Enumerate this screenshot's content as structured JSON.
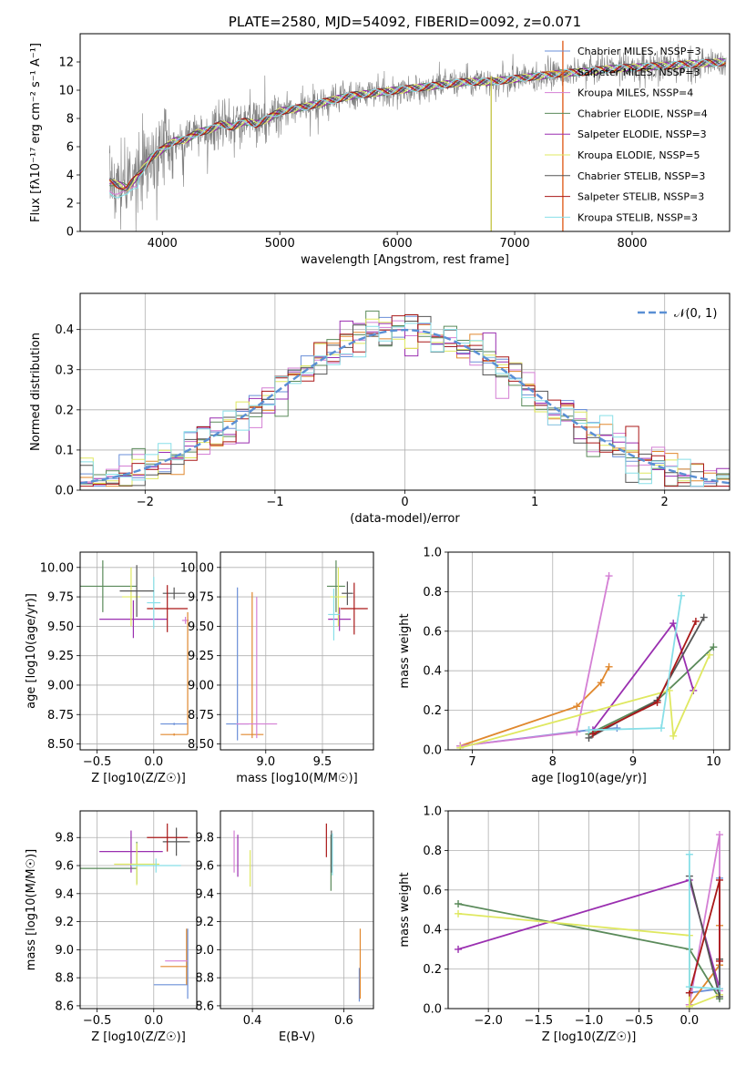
{
  "colors": {
    "palette": [
      "#6a8fd8",
      "#e0882e",
      "#d47fd4",
      "#5a8a5a",
      "#9a2fb0",
      "#dfe860",
      "#555555",
      "#aa1818",
      "#88dfe8"
    ],
    "gauss": "#5a8fd4",
    "flux_data": "#808080",
    "grid": "#b0b0b0"
  },
  "chart_data": [
    {
      "id": "spectrum",
      "type": "line",
      "title": "PLATE=2580, MJD=54092, FIBERID=0092, z=0.071",
      "xlabel": "wavelength [Angstrom, rest frame]",
      "ylabel": "Flux [fλ10⁻¹⁷ erg cm⁻² s⁻¹ A⁻¹]",
      "xlim": [
        3300,
        8830
      ],
      "ylim": [
        0,
        14
      ],
      "xticks": [
        4000,
        5000,
        6000,
        7000,
        8000
      ],
      "yticks": [
        0,
        2,
        4,
        6,
        8,
        10,
        12
      ],
      "grid": false,
      "legend_position": "upper-right",
      "continuum": {
        "x": [
          3550,
          3700,
          3800,
          3900,
          4000,
          4100,
          4200,
          4300,
          4400,
          4500,
          4600,
          4700,
          4800,
          4900,
          5000,
          5200,
          5400,
          5600,
          5800,
          6000,
          6200,
          6400,
          6600,
          6800,
          7000,
          7200,
          7400,
          7600,
          7800,
          8000,
          8200,
          8400,
          8600,
          8800
        ],
        "y": [
          3.5,
          3.1,
          4.0,
          5.2,
          5.8,
          6.4,
          6.5,
          7.0,
          7.2,
          7.6,
          7.4,
          7.8,
          7.6,
          8.0,
          8.5,
          8.8,
          9.2,
          9.6,
          9.8,
          10.0,
          10.2,
          10.4,
          10.6,
          10.6,
          10.8,
          11.0,
          11.2,
          11.3,
          11.5,
          11.6,
          11.7,
          11.8,
          11.9,
          12.0
        ]
      },
      "legend": [
        "Chabrier MILES, NSSP=3",
        "Salpeter MILES, NSSP=3",
        "Kroupa MILES, NSSP=4",
        "Chabrier ELODIE, NSSP=4",
        "Salpeter ELODIE, NSSP=3",
        "Kroupa ELODIE, NSSP=5",
        "Chabrier STELIB, NSSP=3",
        "Salpeter STELIB, NSSP=3",
        "Kroupa STELIB, NSSP=3"
      ]
    },
    {
      "id": "residuals",
      "type": "line",
      "xlabel": "(data-model)/error",
      "ylabel": "Normed distribution",
      "xlim": [
        -2.5,
        2.5
      ],
      "ylim": [
        0,
        0.49
      ],
      "xticks": [
        -2,
        -1,
        0,
        1,
        2
      ],
      "yticks": [
        0.0,
        0.1,
        0.2,
        0.3,
        0.4
      ],
      "grid": true,
      "legend": [
        "𝒩(0, 1)"
      ],
      "legend_position": "upper-right",
      "gaussian": {
        "mean": 0,
        "sigma": 1
      }
    },
    {
      "id": "age_vs_Z",
      "type": "scatter",
      "xlabel": "Z [log10(Z/Z☉)]",
      "ylabel": "age  [log10(age/yr)]",
      "xlim": [
        -0.65,
        0.38
      ],
      "ylim": [
        8.45,
        10.13
      ],
      "xticks": [
        -0.5,
        0.0
      ],
      "yticks": [
        8.5,
        8.75,
        9.0,
        9.25,
        9.5,
        9.75,
        10.0
      ],
      "grid": true,
      "errorbars": [
        {
          "c": 0,
          "x": 0.18,
          "y": 8.67,
          "xerr": 0.12,
          "yerr": 0.01
        },
        {
          "c": 1,
          "x": 0.18,
          "y": 8.58,
          "xerr": 0.12,
          "yerr": 0.01
        },
        {
          "c": 2,
          "x": 0.28,
          "y": 9.55,
          "xerr": 0.03,
          "yerr": 0.03
        },
        {
          "c": 3,
          "x": -0.45,
          "y": 9.84,
          "xerr": 0.3,
          "yerr": 0.22
        },
        {
          "c": 4,
          "x": -0.18,
          "y": 9.56,
          "xerr": 0.3,
          "yerr": 0.16
        },
        {
          "c": 5,
          "x": -0.2,
          "y": 9.75,
          "xerr": 0.08,
          "yerr": 0.25
        },
        {
          "c": 6,
          "x": 0.18,
          "y": 9.78,
          "xerr": 0.1,
          "yerr": 0.05
        },
        {
          "c": 7,
          "x": 0.12,
          "y": 9.65,
          "xerr": 0.18,
          "yerr": 0.2
        },
        {
          "c": 8,
          "x": 0.0,
          "y": 9.7,
          "xerr": 0.06,
          "yerr": 0.22
        },
        {
          "c": 1,
          "x": 0.3,
          "y": 9.1,
          "xerr": 0.0,
          "yerr": 0.52
        },
        {
          "c": 6,
          "x": -0.15,
          "y": 9.8,
          "xerr": 0.15,
          "yerr": 0.22
        }
      ]
    },
    {
      "id": "age_vs_mass",
      "type": "scatter",
      "xlabel": "mass [log10(M/M☉)]",
      "ylabel": "",
      "xlim": [
        8.6,
        9.95
      ],
      "ylim": [
        8.45,
        10.13
      ],
      "xticks": [
        9.0,
        9.5
      ],
      "yticks": [
        8.5,
        8.75,
        9.0,
        9.25,
        9.5,
        9.75,
        10.0
      ],
      "grid": true,
      "errorbars": [
        {
          "c": 0,
          "x": 8.75,
          "y": 8.67,
          "xerr": 0.1,
          "yerr": 0.0
        },
        {
          "c": 0,
          "x": 8.75,
          "y": 9.18,
          "xerr": 0.0,
          "yerr": 0.65
        },
        {
          "c": 1,
          "x": 8.88,
          "y": 8.58,
          "xerr": 0.1,
          "yerr": 0.0
        },
        {
          "c": 1,
          "x": 8.88,
          "y": 9.17,
          "xerr": 0.0,
          "yerr": 0.62
        },
        {
          "c": 2,
          "x": 8.92,
          "y": 8.67,
          "xerr": 0.18,
          "yerr": 0.0
        },
        {
          "c": 2,
          "x": 8.92,
          "y": 9.15,
          "xerr": 0.0,
          "yerr": 0.6
        },
        {
          "c": 3,
          "x": 9.62,
          "y": 9.84,
          "xerr": 0.08,
          "yerr": 0.22
        },
        {
          "c": 4,
          "x": 9.65,
          "y": 9.56,
          "xerr": 0.1,
          "yerr": 0.1
        },
        {
          "c": 5,
          "x": 9.64,
          "y": 9.75,
          "xerr": 0.07,
          "yerr": 0.25
        },
        {
          "c": 6,
          "x": 9.72,
          "y": 9.78,
          "xerr": 0.05,
          "yerr": 0.1
        },
        {
          "c": 7,
          "x": 9.78,
          "y": 9.65,
          "xerr": 0.12,
          "yerr": 0.22
        },
        {
          "c": 8,
          "x": 9.6,
          "y": 9.6,
          "xerr": 0.05,
          "yerr": 0.22
        }
      ]
    },
    {
      "id": "weight_vs_age",
      "type": "line",
      "xlabel": "age  [log10(age/yr)]",
      "ylabel": "mass weight",
      "xlim": [
        6.7,
        10.2
      ],
      "ylim": [
        0,
        1.0
      ],
      "xticks": [
        7,
        8,
        9,
        10
      ],
      "yticks": [
        0.0,
        0.2,
        0.4,
        0.6,
        0.8,
        1.0
      ],
      "grid": true,
      "series": [
        {
          "c": 0,
          "x": [
            6.85,
            8.45,
            8.8
          ],
          "y": [
            0.02,
            0.1,
            0.11
          ]
        },
        {
          "c": 1,
          "x": [
            6.85,
            8.3,
            8.6,
            8.7
          ],
          "y": [
            0.02,
            0.22,
            0.34,
            0.42
          ]
        },
        {
          "c": 2,
          "x": [
            6.85,
            8.3,
            8.7
          ],
          "y": [
            0.02,
            0.09,
            0.88
          ]
        },
        {
          "c": 3,
          "x": [
            8.45,
            9.3,
            10.0
          ],
          "y": [
            0.08,
            0.25,
            0.52
          ]
        },
        {
          "c": 4,
          "x": [
            8.5,
            9.5,
            9.75
          ],
          "y": [
            0.1,
            0.64,
            0.3
          ]
        },
        {
          "c": 5,
          "x": [
            6.85,
            9.45,
            9.5,
            9.95
          ],
          "y": [
            0.01,
            0.3,
            0.07,
            0.48
          ]
        },
        {
          "c": 6,
          "x": [
            8.45,
            9.3,
            9.88
          ],
          "y": [
            0.06,
            0.25,
            0.67
          ]
        },
        {
          "c": 7,
          "x": [
            8.5,
            9.3,
            9.78
          ],
          "y": [
            0.08,
            0.24,
            0.65
          ]
        },
        {
          "c": 8,
          "x": [
            8.45,
            9.35,
            9.6
          ],
          "y": [
            0.1,
            0.11,
            0.78
          ]
        }
      ]
    },
    {
      "id": "mass_vs_Z",
      "type": "scatter",
      "xlabel": "Z [log10(Z/Z☉)]",
      "ylabel": "mass [log10(M/M☉)]",
      "xlim": [
        -0.65,
        0.38
      ],
      "ylim": [
        8.58,
        9.99
      ],
      "xticks": [
        -0.5,
        0.0
      ],
      "yticks": [
        8.6,
        8.8,
        9.0,
        9.2,
        9.4,
        9.6,
        9.8
      ],
      "grid": true,
      "errorbars": [
        {
          "c": 0,
          "x": 0.15,
          "y": 8.75,
          "xerr": 0.15,
          "yerr": 0.0
        },
        {
          "c": 0,
          "x": 0.3,
          "y": 8.9,
          "xerr": 0.0,
          "yerr": 0.25
        },
        {
          "c": 1,
          "x": 0.18,
          "y": 8.88,
          "xerr": 0.12,
          "yerr": 0.0
        },
        {
          "c": 1,
          "x": 0.29,
          "y": 8.95,
          "xerr": 0.0,
          "yerr": 0.2
        },
        {
          "c": 2,
          "x": 0.2,
          "y": 8.92,
          "xerr": 0.1,
          "yerr": 0.0
        },
        {
          "c": 3,
          "x": -0.45,
          "y": 9.58,
          "xerr": 0.3,
          "yerr": 0.0
        },
        {
          "c": 3,
          "x": -0.15,
          "y": 9.62,
          "xerr": 0.0,
          "yerr": 0.15
        },
        {
          "c": 4,
          "x": -0.2,
          "y": 9.7,
          "xerr": 0.28,
          "yerr": 0.15
        },
        {
          "c": 5,
          "x": -0.15,
          "y": 9.61,
          "xerr": 0.2,
          "yerr": 0.15
        },
        {
          "c": 6,
          "x": 0.2,
          "y": 9.77,
          "xerr": 0.12,
          "yerr": 0.1
        },
        {
          "c": 7,
          "x": 0.12,
          "y": 9.8,
          "xerr": 0.18,
          "yerr": 0.1
        },
        {
          "c": 8,
          "x": 0.02,
          "y": 9.6,
          "xerr": 0.22,
          "yerr": 0.05
        }
      ]
    },
    {
      "id": "mass_vs_EBV",
      "type": "scatter",
      "xlabel": "E(B-V)",
      "ylabel": "",
      "xlim": [
        0.33,
        0.665
      ],
      "ylim": [
        8.58,
        9.99
      ],
      "xticks": [
        0.4,
        0.6
      ],
      "yticks": [
        8.6,
        8.8,
        9.0,
        9.2,
        9.4,
        9.6,
        9.8
      ],
      "grid": true,
      "errorbars": [
        {
          "c": 0,
          "x": 0.634,
          "y": 8.75,
          "xerr": 0.0,
          "yerr": 0.12
        },
        {
          "c": 1,
          "x": 0.636,
          "y": 8.9,
          "xerr": 0.0,
          "yerr": 0.25
        },
        {
          "c": 2,
          "x": 0.36,
          "y": 9.7,
          "xerr": 0.0,
          "yerr": 0.15
        },
        {
          "c": 3,
          "x": 0.572,
          "y": 9.62,
          "xerr": 0.0,
          "yerr": 0.2
        },
        {
          "c": 4,
          "x": 0.368,
          "y": 9.67,
          "xerr": 0.0,
          "yerr": 0.15
        },
        {
          "c": 5,
          "x": 0.395,
          "y": 9.58,
          "xerr": 0.0,
          "yerr": 0.13
        },
        {
          "c": 6,
          "x": 0.573,
          "y": 9.7,
          "xerr": 0.0,
          "yerr": 0.15
        },
        {
          "c": 7,
          "x": 0.562,
          "y": 9.78,
          "xerr": 0.0,
          "yerr": 0.12
        },
        {
          "c": 8,
          "x": 0.575,
          "y": 9.68,
          "xerr": 0.0,
          "yerr": 0.15
        }
      ]
    },
    {
      "id": "weight_vs_Z",
      "type": "line",
      "xlabel": "Z [log10(Z/Z☉)]",
      "ylabel": "mass weight",
      "xlim": [
        -2.4,
        0.4
      ],
      "ylim": [
        0,
        1.0
      ],
      "xticks": [
        -2.0,
        -1.5,
        -1.0,
        -0.5,
        0.0
      ],
      "yticks": [
        0.0,
        0.2,
        0.4,
        0.6,
        0.8,
        1.0
      ],
      "grid": true,
      "series": [
        {
          "c": 0,
          "x": [
            0.0,
            0.3,
            0.3
          ],
          "y": [
            0.08,
            0.1,
            0.66
          ]
        },
        {
          "c": 1,
          "x": [
            0.0,
            0.3,
            0.3
          ],
          "y": [
            0.02,
            0.22,
            0.42
          ]
        },
        {
          "c": 2,
          "x": [
            0.0,
            0.3,
            0.3
          ],
          "y": [
            0.02,
            0.88,
            0.09
          ]
        },
        {
          "c": 3,
          "x": [
            -2.3,
            0.0,
            0.3
          ],
          "y": [
            0.53,
            0.3,
            0.05
          ]
        },
        {
          "c": 4,
          "x": [
            -2.3,
            0.0,
            0.3
          ],
          "y": [
            0.3,
            0.65,
            0.1
          ]
        },
        {
          "c": 5,
          "x": [
            -2.3,
            0.0,
            0.0,
            0.3
          ],
          "y": [
            0.48,
            0.37,
            0.01,
            0.07
          ]
        },
        {
          "c": 6,
          "x": [
            0.0,
            0.3,
            0.3
          ],
          "y": [
            0.67,
            0.06,
            0.25
          ]
        },
        {
          "c": 7,
          "x": [
            0.0,
            0.3,
            0.3
          ],
          "y": [
            0.08,
            0.65,
            0.24
          ]
        },
        {
          "c": 8,
          "x": [
            0.0,
            0.0,
            0.3
          ],
          "y": [
            0.78,
            0.11,
            0.1
          ]
        }
      ]
    }
  ]
}
